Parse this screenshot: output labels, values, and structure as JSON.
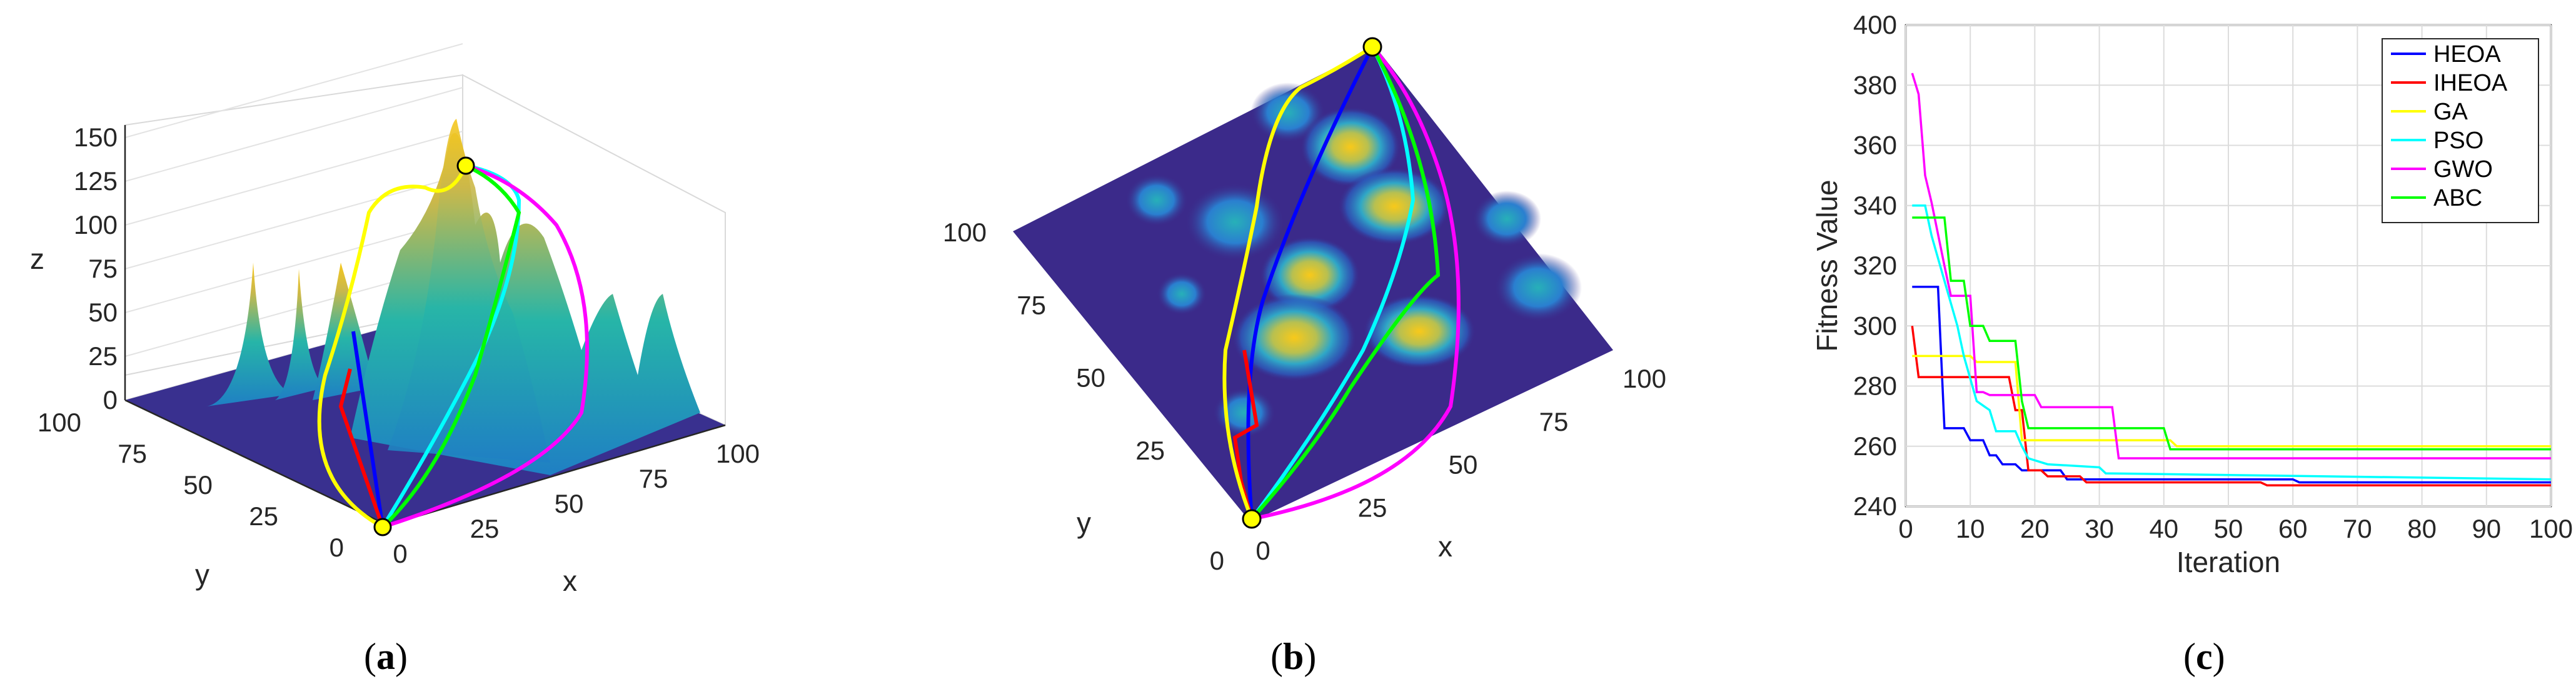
{
  "panel_a": {
    "label_open": "(",
    "label_letter": "a",
    "label_close": ")",
    "z_axis_label": "z",
    "y_axis_label": "y",
    "x_axis_label": "x",
    "z_ticks": [
      "0",
      "25",
      "50",
      "75",
      "100",
      "125",
      "150"
    ],
    "y_ticks": [
      "0",
      "25",
      "50",
      "75",
      "100"
    ],
    "x_ticks": [
      "0",
      "25",
      "50",
      "75",
      "100"
    ]
  },
  "panel_b": {
    "label_open": "(",
    "label_letter": "b",
    "label_close": ")",
    "y_axis_label": "y",
    "x_axis_label": "x",
    "y_ticks": [
      "0",
      "25",
      "50",
      "75",
      "100"
    ],
    "x_ticks": [
      "0",
      "25",
      "50",
      "75",
      "100"
    ]
  },
  "panel_c": {
    "label_open": "(",
    "label_letter": "c",
    "label_close": ")"
  },
  "colors": {
    "HEOA": "#0000ff",
    "IHEOA": "#ff0000",
    "GA": "#ffff00",
    "PSO": "#00ffff",
    "GWO": "#ff00ff",
    "ABC": "#00ff00",
    "terrain_low": "#3b2a8a",
    "terrain_high": "#f5c400"
  },
  "chart_data": [
    {
      "type": "line",
      "panel": "c",
      "title": "",
      "xlabel": "Iteration",
      "ylabel": "Fitness Value",
      "xlim": [
        0,
        100
      ],
      "ylim": [
        240,
        400
      ],
      "xticks": [
        0,
        10,
        20,
        30,
        40,
        50,
        60,
        70,
        80,
        90,
        100
      ],
      "yticks": [
        240,
        260,
        280,
        300,
        320,
        340,
        360,
        380,
        400
      ],
      "legend_position": "top-right",
      "grid": true,
      "series": [
        {
          "name": "HEOA",
          "points": [
            [
              1,
              313
            ],
            [
              5,
              313
            ],
            [
              6,
              266
            ],
            [
              9,
              266
            ],
            [
              10,
              262
            ],
            [
              12,
              262
            ],
            [
              13,
              257
            ],
            [
              14,
              257
            ],
            [
              15,
              254
            ],
            [
              17,
              254
            ],
            [
              18,
              252
            ],
            [
              24,
              252
            ],
            [
              25,
              249
            ],
            [
              60,
              249
            ],
            [
              61,
              248
            ],
            [
              100,
              248
            ]
          ]
        },
        {
          "name": "IHEOA",
          "points": [
            [
              1,
              300
            ],
            [
              2,
              283
            ],
            [
              16,
              283
            ],
            [
              17,
              272
            ],
            [
              18,
              272
            ],
            [
              19,
              252
            ],
            [
              21,
              252
            ],
            [
              22,
              250
            ],
            [
              27,
              250
            ],
            [
              28,
              248
            ],
            [
              55,
              248
            ],
            [
              56,
              247
            ],
            [
              100,
              247
            ]
          ]
        },
        {
          "name": "GA",
          "points": [
            [
              1,
              290
            ],
            [
              10,
              290
            ],
            [
              11,
              288
            ],
            [
              17,
              288
            ],
            [
              18,
              262
            ],
            [
              41,
              262
            ],
            [
              42,
              260
            ],
            [
              100,
              260
            ]
          ]
        },
        {
          "name": "PSO",
          "points": [
            [
              1,
              340
            ],
            [
              3,
              340
            ],
            [
              4,
              330
            ],
            [
              6,
              315
            ],
            [
              8,
              300
            ],
            [
              9,
              290
            ],
            [
              11,
              275
            ],
            [
              13,
              272
            ],
            [
              14,
              265
            ],
            [
              17,
              265
            ],
            [
              18,
              260
            ],
            [
              19,
              256
            ],
            [
              22,
              254
            ],
            [
              30,
              253
            ],
            [
              31,
              251
            ],
            [
              100,
              249
            ]
          ]
        },
        {
          "name": "GWO",
          "points": [
            [
              1,
              384
            ],
            [
              2,
              377
            ],
            [
              3,
              350
            ],
            [
              4,
              341
            ],
            [
              6,
              320
            ],
            [
              7,
              310
            ],
            [
              10,
              310
            ],
            [
              11,
              278
            ],
            [
              12,
              278
            ],
            [
              13,
              277
            ],
            [
              20,
              277
            ],
            [
              21,
              273
            ],
            [
              32,
              273
            ],
            [
              33,
              256
            ],
            [
              100,
              256
            ]
          ]
        },
        {
          "name": "ABC",
          "points": [
            [
              1,
              336
            ],
            [
              6,
              336
            ],
            [
              7,
              315
            ],
            [
              9,
              315
            ],
            [
              10,
              300
            ],
            [
              12,
              300
            ],
            [
              13,
              295
            ],
            [
              17,
              295
            ],
            [
              18,
              275
            ],
            [
              19,
              266
            ],
            [
              40,
              266
            ],
            [
              41,
              259
            ],
            [
              100,
              259
            ]
          ]
        }
      ]
    },
    {
      "type": "other",
      "panel": "a",
      "description_kind": "3d-surface-with-paths",
      "xlim": [
        0,
        100
      ],
      "ylim": [
        0,
        100
      ],
      "zlim": [
        0,
        150
      ],
      "series_colors": [
        "HEOA",
        "IHEOA",
        "GA",
        "PSO",
        "GWO",
        "ABC"
      ]
    },
    {
      "type": "heatmap",
      "panel": "b",
      "description_kind": "top-view-terrain-with-paths",
      "xlim": [
        0,
        100
      ],
      "ylim": [
        0,
        100
      ]
    }
  ]
}
